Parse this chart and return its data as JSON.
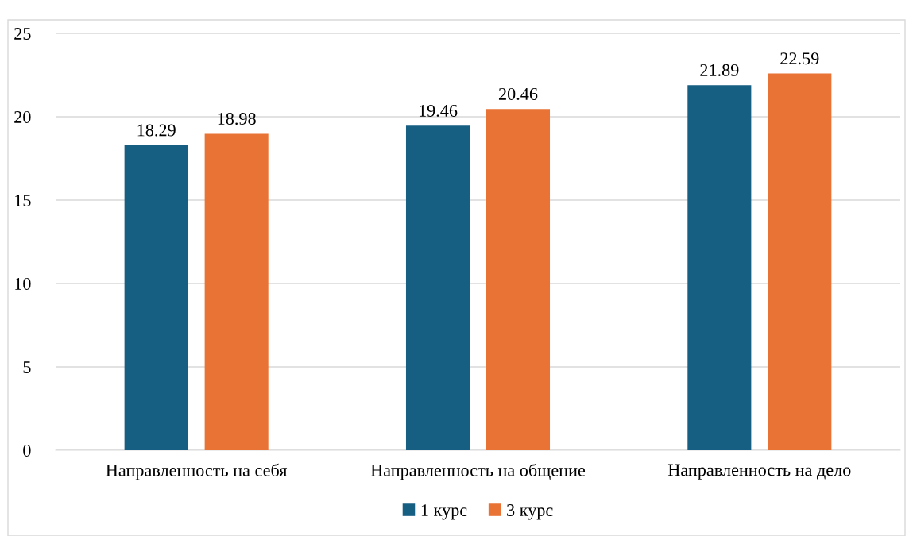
{
  "chart_data": {
    "type": "bar",
    "categories": [
      "Направленность на себя",
      "Направленность на общение",
      "Направленность на дело"
    ],
    "series": [
      {
        "name": "1 курс",
        "color": "#175e83",
        "values": [
          18.29,
          19.46,
          21.89
        ]
      },
      {
        "name": "3 курс",
        "color": "#e97334",
        "values": [
          18.98,
          20.46,
          22.59
        ]
      }
    ],
    "ylim": [
      0,
      25
    ],
    "yticks": [
      0,
      5,
      10,
      15,
      20,
      25
    ],
    "grid": "y",
    "legend": "bottom",
    "data_labels": true
  }
}
